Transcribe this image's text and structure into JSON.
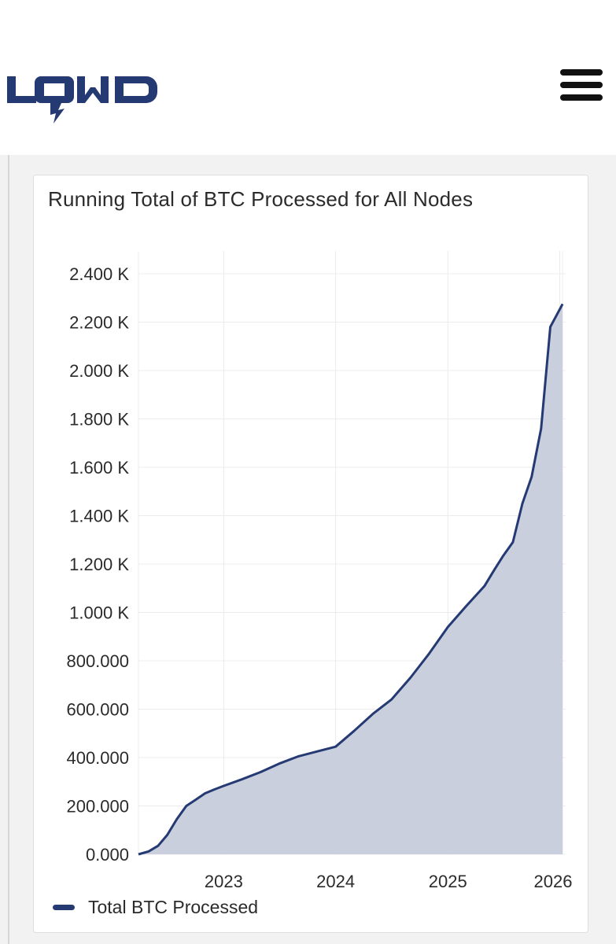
{
  "header": {
    "logo_text": "LQWD",
    "menu_icon": "hamburger-menu-icon"
  },
  "colors": {
    "brand": "#253a73",
    "area_fill": "#c7ccdc",
    "grid": "#ececec"
  },
  "chart_data": {
    "type": "area",
    "title": "Running Total of BTC Processed for All Nodes",
    "xlabel": "",
    "ylabel": "",
    "x_ticks": [
      "2023",
      "2024",
      "2025",
      "2026"
    ],
    "y_ticks": [
      "0.000",
      "200.000",
      "400.000",
      "600.000",
      "800.000",
      "1.000 K",
      "1.200 K",
      "1.400 K",
      "1.600 K",
      "1.800 K",
      "2.000 K",
      "2.200 K",
      "2.400 K"
    ],
    "ylim": [
      0,
      2400
    ],
    "xlim": [
      "2022-03-29",
      "2026-01-15"
    ],
    "grid": true,
    "legend_position": "bottom-left",
    "series": [
      {
        "name": "Total BTC Processed",
        "points": [
          [
            "2022-03-29",
            0
          ],
          [
            "2022-05-01",
            12
          ],
          [
            "2022-06-01",
            35
          ],
          [
            "2022-07-01",
            80
          ],
          [
            "2022-08-01",
            145
          ],
          [
            "2022-09-01",
            200
          ],
          [
            "2022-10-01",
            225
          ],
          [
            "2022-11-01",
            252
          ],
          [
            "2022-12-01",
            268
          ],
          [
            "2023-01-01",
            283
          ],
          [
            "2023-03-01",
            310
          ],
          [
            "2023-05-01",
            340
          ],
          [
            "2023-07-01",
            375
          ],
          [
            "2023-09-01",
            405
          ],
          [
            "2023-11-01",
            425
          ],
          [
            "2024-01-01",
            445
          ],
          [
            "2024-03-01",
            510
          ],
          [
            "2024-05-01",
            580
          ],
          [
            "2024-07-01",
            640
          ],
          [
            "2024-09-01",
            730
          ],
          [
            "2024-11-01",
            830
          ],
          [
            "2025-01-01",
            940
          ],
          [
            "2025-03-01",
            1025
          ],
          [
            "2025-05-01",
            1110
          ],
          [
            "2025-06-01",
            1175
          ],
          [
            "2025-07-01",
            1235
          ],
          [
            "2025-08-01",
            1290
          ],
          [
            "2025-09-01",
            1450
          ],
          [
            "2025-10-01",
            1560
          ],
          [
            "2025-11-01",
            1760
          ],
          [
            "2025-12-01",
            2180
          ],
          [
            "2026-01-10",
            2275
          ]
        ]
      }
    ]
  }
}
